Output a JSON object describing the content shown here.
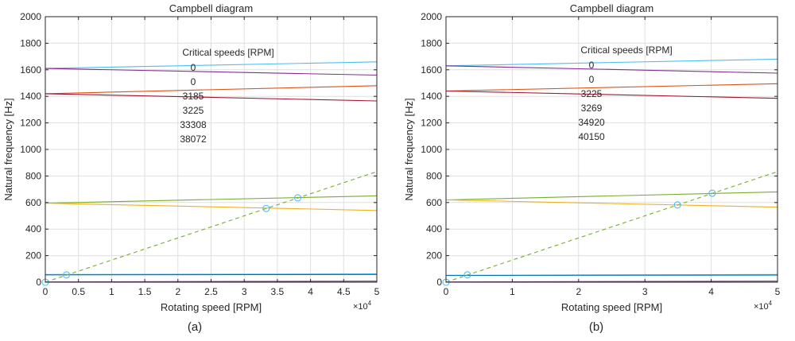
{
  "charts": [
    {
      "caption": "(a)",
      "chart_data": {
        "type": "line",
        "title": "Campbell diagram",
        "xlabel": "Rotating speed [RPM]",
        "ylabel": "Natural frequency [Hz]",
        "xlim": [
          0,
          50000
        ],
        "ylim": [
          0,
          2000
        ],
        "x_ticks": [
          0,
          0.5,
          1,
          1.5,
          2,
          2.5,
          3,
          3.5,
          4,
          4.5,
          5
        ],
        "x_tick_labels": [
          "0",
          "0.5",
          "1",
          "1.5",
          "2",
          "2.5",
          "3",
          "3.5",
          "4",
          "4.5",
          "5"
        ],
        "y_ticks": [
          0,
          200,
          400,
          600,
          800,
          1000,
          1200,
          1400,
          1600,
          1800,
          2000
        ],
        "x_multiplier": "×10",
        "x_multiplier_exp": "4",
        "grid": true,
        "annotation_title": "Critical speeds [RPM]",
        "critical_speeds": [
          "0",
          "0",
          "3185",
          "3225",
          "33308",
          "38072"
        ],
        "series": [
          {
            "x": [
              0,
              50000
            ],
            "y": [
              1610,
              1660
            ],
            "color": "#4dbeee"
          },
          {
            "x": [
              0,
              50000
            ],
            "y": [
              1610,
              1560
            ],
            "color": "#7e2f8e"
          },
          {
            "x": [
              0,
              50000
            ],
            "y": [
              1420,
              1480
            ],
            "color": "#d95319"
          },
          {
            "x": [
              0,
              50000
            ],
            "y": [
              1420,
              1365
            ],
            "color": "#a2142f"
          },
          {
            "x": [
              0,
              50000
            ],
            "y": [
              595,
              650
            ],
            "color": "#77ac30"
          },
          {
            "x": [
              0,
              50000
            ],
            "y": [
              595,
              540
            ],
            "color": "#edb120"
          },
          {
            "x": [
              0,
              50000
            ],
            "y": [
              58,
              62
            ],
            "color": "#4dbeee"
          },
          {
            "x": [
              0,
              50000
            ],
            "y": [
              55,
              58
            ],
            "color": "#0072bd"
          },
          {
            "x": [
              0,
              50000
            ],
            "y": [
              2,
              8
            ],
            "color": "#7e2f8e"
          },
          {
            "x": [
              0,
              50000
            ],
            "y": [
              0,
              833
            ],
            "color": "#77ac30",
            "dashed": true
          }
        ],
        "markers": [
          {
            "x": 0,
            "y": 0
          },
          {
            "x": 3185,
            "y": 55
          },
          {
            "x": 33308,
            "y": 555
          },
          {
            "x": 38072,
            "y": 635
          }
        ]
      }
    },
    {
      "caption": "(b)",
      "chart_data": {
        "type": "line",
        "title": "Campbell diagram",
        "xlabel": "Rotating speed [RPM]",
        "ylabel": "Natural frequency [Hz]",
        "xlim": [
          0,
          50000
        ],
        "ylim": [
          0,
          2000
        ],
        "x_ticks": [
          0,
          1,
          2,
          3,
          4,
          5
        ],
        "x_tick_labels": [
          "0",
          "1",
          "2",
          "3",
          "4",
          "5"
        ],
        "y_ticks": [
          0,
          200,
          400,
          600,
          800,
          1000,
          1200,
          1400,
          1600,
          1800,
          2000
        ],
        "x_multiplier": "×10",
        "x_multiplier_exp": "4",
        "grid": true,
        "annotation_title": "Critical speeds [RPM]",
        "critical_speeds": [
          "0",
          "0",
          "3225",
          "3269",
          "34920",
          "40150"
        ],
        "series": [
          {
            "x": [
              0,
              50000
            ],
            "y": [
              1630,
              1680
            ],
            "color": "#4dbeee"
          },
          {
            "x": [
              0,
              50000
            ],
            "y": [
              1630,
              1575
            ],
            "color": "#7e2f8e"
          },
          {
            "x": [
              0,
              50000
            ],
            "y": [
              1440,
              1495
            ],
            "color": "#d95319"
          },
          {
            "x": [
              0,
              50000
            ],
            "y": [
              1440,
              1385
            ],
            "color": "#a2142f"
          },
          {
            "x": [
              0,
              50000
            ],
            "y": [
              620,
              680
            ],
            "color": "#77ac30"
          },
          {
            "x": [
              0,
              50000
            ],
            "y": [
              620,
              565
            ],
            "color": "#edb120"
          },
          {
            "x": [
              0,
              50000
            ],
            "y": [
              52,
              58
            ],
            "color": "#4dbeee"
          },
          {
            "x": [
              0,
              50000
            ],
            "y": [
              50,
              53
            ],
            "color": "#0072bd"
          },
          {
            "x": [
              0,
              50000
            ],
            "y": [
              2,
              8
            ],
            "color": "#7e2f8e"
          },
          {
            "x": [
              0,
              50000
            ],
            "y": [
              0,
              833
            ],
            "color": "#77ac30",
            "dashed": true
          }
        ],
        "markers": [
          {
            "x": 0,
            "y": 0
          },
          {
            "x": 3225,
            "y": 55
          },
          {
            "x": 34920,
            "y": 582
          },
          {
            "x": 40150,
            "y": 670
          }
        ]
      }
    }
  ]
}
